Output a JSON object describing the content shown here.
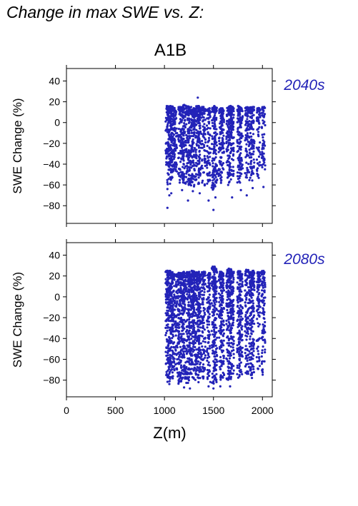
{
  "page_title": "Change in max SWE vs. Z:",
  "scenario": "A1B",
  "colors": {
    "points": "#2323b8",
    "period_label": "#2323b8",
    "axis": "#000000"
  },
  "chart_data": [
    {
      "type": "scatter",
      "period": "2040s",
      "ylabel": "SWE Change (%)",
      "xlabel": "Z(m)",
      "xlim": [
        0,
        2100
      ],
      "ylim": [
        -97,
        52
      ],
      "xticks": [
        0,
        500,
        1000,
        1500,
        2000
      ],
      "yticks": [
        -80,
        -60,
        -40,
        -20,
        0,
        20,
        40
      ],
      "xticklabels_shown": false,
      "grid": false,
      "columns": [
        {
          "x": 1030,
          "ymin": -58,
          "ymax": 16,
          "outliers": [
            -82,
            -64
          ]
        },
        {
          "x": 1050,
          "ymin": -62,
          "ymax": 16,
          "outliers": [
            -70
          ]
        },
        {
          "x": 1070,
          "ymin": -55,
          "ymax": 16,
          "outliers": [
            -68
          ]
        },
        {
          "x": 1090,
          "ymin": -50,
          "ymax": 15,
          "outliers": []
        },
        {
          "x": 1110,
          "ymin": -48,
          "ymax": 14,
          "outliers": []
        },
        {
          "x": 1160,
          "ymin": -60,
          "ymax": 15,
          "outliers": []
        },
        {
          "x": 1180,
          "ymin": -58,
          "ymax": 15,
          "outliers": [
            -65
          ]
        },
        {
          "x": 1200,
          "ymin": -62,
          "ymax": 17,
          "outliers": []
        },
        {
          "x": 1240,
          "ymin": -65,
          "ymax": 16,
          "outliers": [
            -75
          ]
        },
        {
          "x": 1260,
          "ymin": -60,
          "ymax": 15,
          "outliers": []
        },
        {
          "x": 1290,
          "ymin": -62,
          "ymax": 15,
          "outliers": [
            -66
          ]
        },
        {
          "x": 1310,
          "ymin": -58,
          "ymax": 14,
          "outliers": []
        },
        {
          "x": 1340,
          "ymin": -55,
          "ymax": 16,
          "outliers": [
            24
          ]
        },
        {
          "x": 1360,
          "ymin": -60,
          "ymax": 14,
          "outliers": [
            -68
          ]
        },
        {
          "x": 1400,
          "ymin": -62,
          "ymax": 15,
          "outliers": []
        },
        {
          "x": 1450,
          "ymin": -60,
          "ymax": 14,
          "outliers": [
            -75
          ]
        },
        {
          "x": 1500,
          "ymin": -65,
          "ymax": 16,
          "outliers": [
            -84
          ]
        },
        {
          "x": 1520,
          "ymin": -60,
          "ymax": 15,
          "outliers": [
            -72
          ]
        },
        {
          "x": 1570,
          "ymin": -52,
          "ymax": 13,
          "outliers": []
        },
        {
          "x": 1590,
          "ymin": -58,
          "ymax": 14,
          "outliers": []
        },
        {
          "x": 1650,
          "ymin": -55,
          "ymax": 15,
          "outliers": [
            -60
          ]
        },
        {
          "x": 1670,
          "ymin": -60,
          "ymax": 16,
          "outliers": []
        },
        {
          "x": 1690,
          "ymin": -55,
          "ymax": 15,
          "outliers": [
            -72
          ]
        },
        {
          "x": 1760,
          "ymin": -58,
          "ymax": 16,
          "outliers": []
        },
        {
          "x": 1780,
          "ymin": -52,
          "ymax": 15,
          "outliers": [
            -65
          ]
        },
        {
          "x": 1840,
          "ymin": -55,
          "ymax": 15,
          "outliers": [
            -70
          ]
        },
        {
          "x": 1880,
          "ymin": -58,
          "ymax": 15,
          "outliers": []
        },
        {
          "x": 1900,
          "ymin": -50,
          "ymax": 15,
          "outliers": [
            -63
          ]
        },
        {
          "x": 1960,
          "ymin": -54,
          "ymax": 14,
          "outliers": []
        },
        {
          "x": 2010,
          "ymin": -45,
          "ymax": 15,
          "outliers": [
            -62
          ]
        }
      ]
    },
    {
      "type": "scatter",
      "period": "2080s",
      "ylabel": "SWE Change (%)",
      "xlabel": "Z(m)",
      "xlim": [
        0,
        2100
      ],
      "ylim": [
        -96,
        52
      ],
      "xticks": [
        0,
        500,
        1000,
        1500,
        2000
      ],
      "yticks": [
        -80,
        -60,
        -40,
        -20,
        0,
        20,
        40
      ],
      "xticklabels_shown": true,
      "grid": false,
      "columns": [
        {
          "x": 1030,
          "ymin": -82,
          "ymax": 25,
          "outliers": []
        },
        {
          "x": 1050,
          "ymin": -84,
          "ymax": 25,
          "outliers": []
        },
        {
          "x": 1070,
          "ymin": -80,
          "ymax": 24,
          "outliers": []
        },
        {
          "x": 1090,
          "ymin": -75,
          "ymax": 22,
          "outliers": []
        },
        {
          "x": 1130,
          "ymin": -78,
          "ymax": 22,
          "outliers": []
        },
        {
          "x": 1160,
          "ymin": -84,
          "ymax": 23,
          "outliers": []
        },
        {
          "x": 1180,
          "ymin": -80,
          "ymax": 22,
          "outliers": []
        },
        {
          "x": 1200,
          "ymin": -82,
          "ymax": 24,
          "outliers": [
            -87
          ]
        },
        {
          "x": 1240,
          "ymin": -84,
          "ymax": 24,
          "outliers": []
        },
        {
          "x": 1260,
          "ymin": -82,
          "ymax": 22,
          "outliers": [
            -88
          ]
        },
        {
          "x": 1290,
          "ymin": -80,
          "ymax": 25,
          "outliers": []
        },
        {
          "x": 1310,
          "ymin": -82,
          "ymax": 23,
          "outliers": []
        },
        {
          "x": 1340,
          "ymin": -78,
          "ymax": 24,
          "outliers": []
        },
        {
          "x": 1360,
          "ymin": -84,
          "ymax": 22,
          "outliers": []
        },
        {
          "x": 1400,
          "ymin": -80,
          "ymax": 24,
          "outliers": []
        },
        {
          "x": 1450,
          "ymin": -82,
          "ymax": 23,
          "outliers": [
            -86
          ]
        },
        {
          "x": 1500,
          "ymin": -84,
          "ymax": 29,
          "outliers": [
            -88
          ]
        },
        {
          "x": 1520,
          "ymin": -82,
          "ymax": 28,
          "outliers": []
        },
        {
          "x": 1570,
          "ymin": -80,
          "ymax": 24,
          "outliers": [
            -86
          ]
        },
        {
          "x": 1590,
          "ymin": -78,
          "ymax": 23,
          "outliers": []
        },
        {
          "x": 1650,
          "ymin": -82,
          "ymax": 26,
          "outliers": []
        },
        {
          "x": 1670,
          "ymin": -80,
          "ymax": 27,
          "outliers": [
            -86
          ]
        },
        {
          "x": 1690,
          "ymin": -78,
          "ymax": 24,
          "outliers": []
        },
        {
          "x": 1760,
          "ymin": -78,
          "ymax": 25,
          "outliers": []
        },
        {
          "x": 1780,
          "ymin": -75,
          "ymax": 22,
          "outliers": []
        },
        {
          "x": 1840,
          "ymin": -76,
          "ymax": 26,
          "outliers": []
        },
        {
          "x": 1880,
          "ymin": -78,
          "ymax": 24,
          "outliers": []
        },
        {
          "x": 1900,
          "ymin": -74,
          "ymax": 25,
          "outliers": []
        },
        {
          "x": 1960,
          "ymin": -72,
          "ymax": 24,
          "outliers": []
        },
        {
          "x": 2010,
          "ymin": -76,
          "ymax": 25,
          "outliers": []
        }
      ]
    }
  ]
}
